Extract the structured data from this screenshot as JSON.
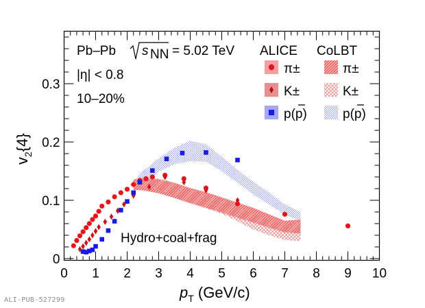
{
  "watermark": "ALI-PUB-527299",
  "chart_data": {
    "type": "scatter",
    "xlabel": "p",
    "xlabel_sub": "T",
    "xlabel_unit": " (GeV/c)",
    "ylabel": "v",
    "ylabel_sub": "2",
    "ylabel_suffix": "{4}",
    "xlim": [
      0,
      10
    ],
    "ylim": [
      -0.003,
      0.39
    ],
    "xticks": [
      0,
      1,
      2,
      3,
      4,
      5,
      6,
      7,
      8,
      9,
      10
    ],
    "yticks": [
      0,
      0.1,
      0.2,
      0.3
    ],
    "ytick_labels": [
      "0",
      "0.1",
      "0.2",
      "0.3"
    ],
    "annotations": {
      "system": "Pb–Pb",
      "energy_value": "= 5.02 TeV",
      "sqrt_s": "s",
      "sqrt_s_sub": "NN",
      "eta": "|η| < 0.8",
      "centrality": "10–20%",
      "model": "Hydro+coal+frag"
    },
    "legend": {
      "header_data": "ALICE",
      "header_model": "CoLBT",
      "entries": [
        "π±",
        "K±",
        "p(p)"
      ]
    },
    "colors": {
      "pion": "#e8141b",
      "kaon": "#c8141b",
      "proton": "#1a1ae6",
      "pion_band": "#f07a7a",
      "kaon_band": "#f0a0a0",
      "proton_band": "#9da6ec"
    },
    "series": [
      {
        "name": "π±",
        "kind": "data",
        "marker": "circle",
        "points": [
          [
            0.3,
            0.022
          ],
          [
            0.4,
            0.031
          ],
          [
            0.5,
            0.039
          ],
          [
            0.6,
            0.046
          ],
          [
            0.7,
            0.053
          ],
          [
            0.8,
            0.06
          ],
          [
            0.9,
            0.067
          ],
          [
            1.0,
            0.073
          ],
          [
            1.1,
            0.081
          ],
          [
            1.2,
            0.09
          ],
          [
            1.4,
            0.097
          ],
          [
            1.6,
            0.106
          ],
          [
            1.8,
            0.113
          ],
          [
            2.0,
            0.119
          ],
          [
            2.2,
            0.127
          ],
          [
            2.4,
            0.134
          ],
          [
            2.6,
            0.137
          ],
          [
            2.8,
            0.14
          ],
          [
            3.2,
            0.143
          ],
          [
            3.8,
            0.137
          ],
          [
            4.5,
            0.121
          ],
          [
            5.5,
            0.094
          ],
          [
            7.0,
            0.076
          ],
          [
            9.0,
            0.056
          ]
        ]
      },
      {
        "name": "K±",
        "kind": "data",
        "marker": "diamond",
        "points": [
          [
            0.5,
            0.016
          ],
          [
            0.6,
            0.021
          ],
          [
            0.7,
            0.027
          ],
          [
            0.8,
            0.033
          ],
          [
            0.9,
            0.04
          ],
          [
            1.0,
            0.047
          ],
          [
            1.1,
            0.054
          ],
          [
            1.3,
            0.063
          ],
          [
            1.5,
            0.072
          ],
          [
            1.7,
            0.082
          ],
          [
            1.9,
            0.093
          ],
          [
            2.2,
            0.108
          ],
          [
            2.7,
            0.123
          ],
          [
            3.2,
            0.14
          ],
          [
            3.8,
            0.131
          ],
          [
            4.5,
            0.117
          ],
          [
            5.5,
            0.1
          ]
        ]
      },
      {
        "name": "p(p)",
        "kind": "data",
        "marker": "square",
        "points": [
          [
            0.6,
            0.012
          ],
          [
            0.7,
            0.011
          ],
          [
            0.8,
            0.013
          ],
          [
            0.9,
            0.015
          ],
          [
            1.0,
            0.021
          ],
          [
            1.2,
            0.033
          ],
          [
            1.4,
            0.048
          ],
          [
            1.6,
            0.064
          ],
          [
            1.8,
            0.083
          ],
          [
            2.0,
            0.098
          ],
          [
            2.2,
            0.113
          ],
          [
            2.4,
            0.131
          ],
          [
            2.8,
            0.151
          ],
          [
            3.25,
            0.171
          ],
          [
            3.75,
            0.181
          ],
          [
            4.5,
            0.182
          ],
          [
            5.5,
            0.169
          ]
        ]
      },
      {
        "name": "π±",
        "kind": "band",
        "x": [
          2.2,
          2.5,
          3.0,
          3.5,
          4.0,
          4.5,
          5.0,
          5.5,
          6.0,
          6.5,
          7.0,
          7.5
        ],
        "lo": [
          0.118,
          0.117,
          0.112,
          0.104,
          0.095,
          0.087,
          0.079,
          0.07,
          0.062,
          0.053,
          0.045,
          0.043
        ],
        "hi": [
          0.136,
          0.137,
          0.136,
          0.13,
          0.121,
          0.114,
          0.105,
          0.096,
          0.087,
          0.076,
          0.065,
          0.067
        ]
      },
      {
        "name": "K±",
        "kind": "band",
        "x": [
          2.4,
          2.8,
          3.2,
          3.6,
          4.0,
          4.5,
          5.0,
          5.5,
          6.0,
          6.5,
          7.0,
          7.5
        ],
        "lo": [
          0.124,
          0.121,
          0.114,
          0.105,
          0.096,
          0.086,
          0.077,
          0.064,
          0.05,
          0.04,
          0.032,
          0.03
        ],
        "hi": [
          0.14,
          0.139,
          0.135,
          0.128,
          0.118,
          0.11,
          0.103,
          0.09,
          0.077,
          0.066,
          0.06,
          0.062
        ]
      },
      {
        "name": "p(p)",
        "kind": "band",
        "x": [
          2.2,
          2.5,
          3.0,
          3.5,
          4.0,
          4.5,
          5.0,
          5.5,
          6.0,
          6.5,
          7.0,
          7.5
        ],
        "lo": [
          0.112,
          0.128,
          0.149,
          0.162,
          0.167,
          0.166,
          0.15,
          0.13,
          0.11,
          0.093,
          0.075,
          0.065
        ],
        "hi": [
          0.132,
          0.15,
          0.172,
          0.19,
          0.202,
          0.196,
          0.175,
          0.152,
          0.132,
          0.113,
          0.093,
          0.08
        ]
      }
    ]
  }
}
